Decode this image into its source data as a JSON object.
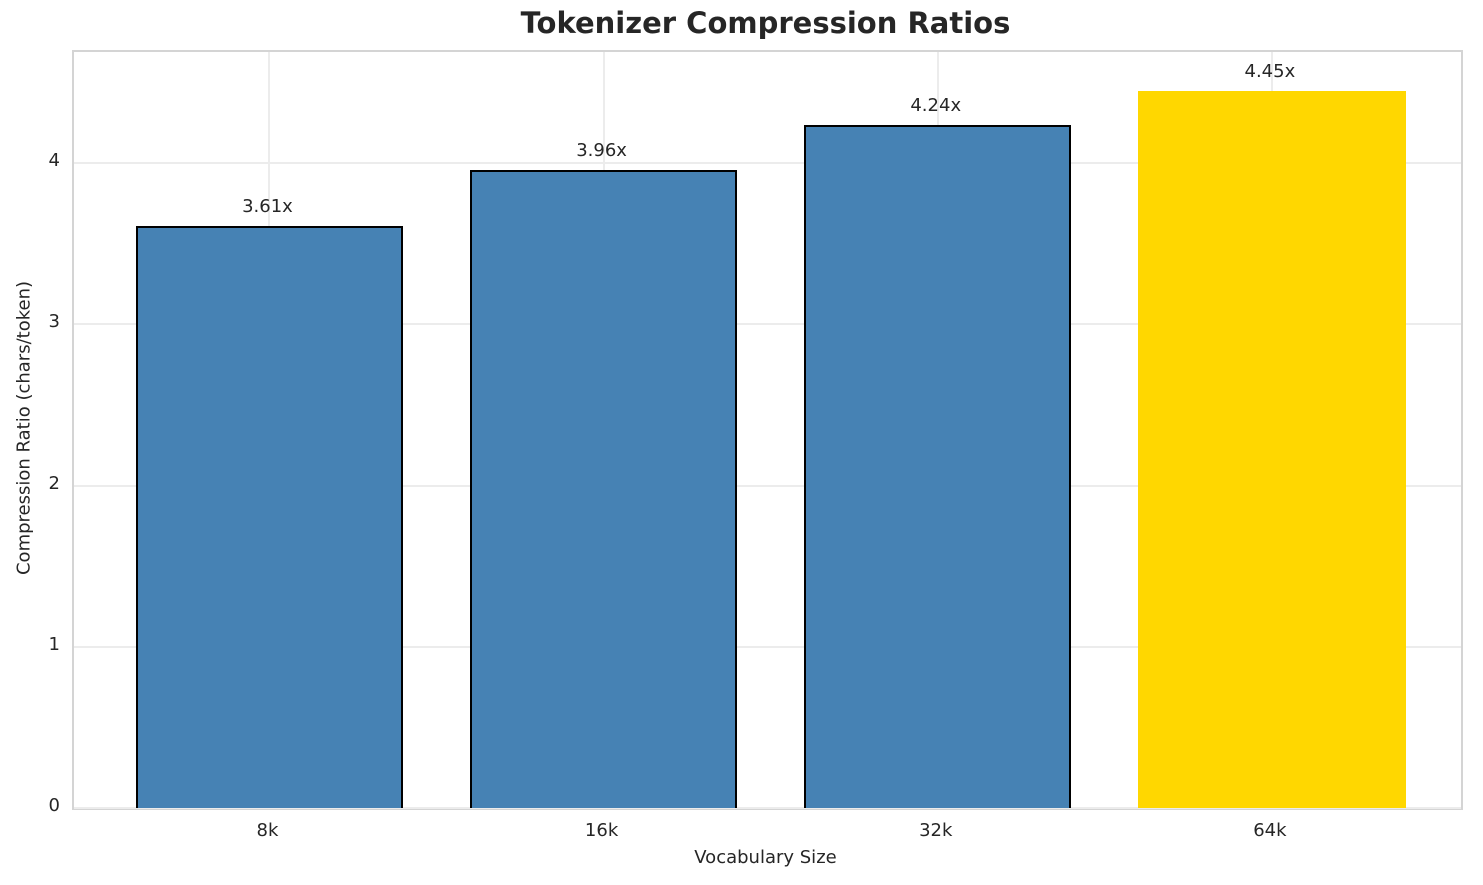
{
  "chart_data": {
    "type": "bar",
    "title": "Tokenizer Compression Ratios",
    "xlabel": "Vocabulary Size",
    "ylabel": "Compression Ratio (chars/token)",
    "categories": [
      "8k",
      "16k",
      "32k",
      "64k"
    ],
    "values": [
      3.61,
      3.96,
      4.24,
      4.45
    ],
    "bar_labels": [
      "3.61x",
      "3.96x",
      "4.24x",
      "4.45x"
    ],
    "bar_colors": [
      "#4682b4",
      "#4682b4",
      "#4682b4",
      "#ffd700"
    ],
    "bar_edge_colors": [
      "#000000",
      "#000000",
      "#000000",
      "none"
    ],
    "bar_width": 0.8,
    "yticks": [
      0,
      1,
      2,
      3,
      4
    ],
    "ylim": [
      0,
      4.69
    ],
    "xlim": [
      -0.585,
      3.566
    ],
    "grid": true,
    "legend": "none",
    "colors": {
      "text": "#262626",
      "grid": "#ececec",
      "spine": "#d4d4d4",
      "background": "#ffffff"
    }
  }
}
